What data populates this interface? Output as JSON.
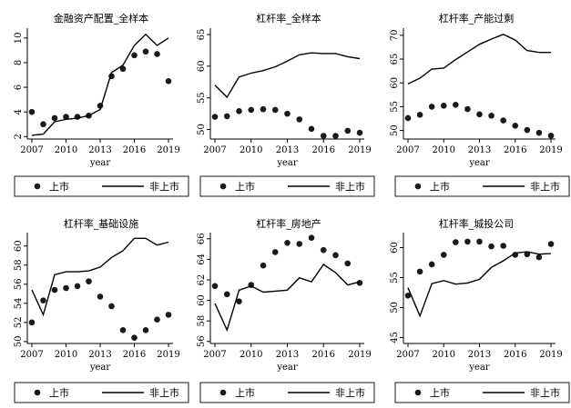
{
  "legend": {
    "listed": "上市",
    "unlisted": "非上市"
  },
  "chart_data": [
    {
      "type": "line",
      "title": "金融资产配置_全样本",
      "xlabel": "year",
      "ylabel": "",
      "x": [
        2007,
        2008,
        2009,
        2010,
        2011,
        2012,
        2013,
        2014,
        2015,
        2016,
        2017,
        2018,
        2019
      ],
      "xticks": [
        2007,
        2010,
        2013,
        2016,
        2019
      ],
      "ylim": [
        1.8,
        10.8
      ],
      "yticks": [
        2,
        4,
        6,
        8,
        10
      ],
      "series": [
        {
          "name": "上市",
          "style": "scatter",
          "values": [
            4.0,
            3.0,
            3.5,
            3.6,
            3.6,
            3.7,
            4.5,
            6.9,
            7.5,
            8.6,
            8.9,
            8.7,
            6.5
          ]
        },
        {
          "name": "非上市",
          "style": "line",
          "values": [
            2.1,
            2.2,
            3.2,
            3.4,
            3.5,
            3.7,
            4.2,
            7.2,
            7.8,
            9.4,
            10.3,
            9.4,
            10.0
          ]
        }
      ]
    },
    {
      "type": "line",
      "title": "杠杆率_全样本",
      "xlabel": "year",
      "ylabel": "",
      "x": [
        2007,
        2008,
        2009,
        2010,
        2011,
        2012,
        2013,
        2014,
        2015,
        2016,
        2017,
        2018,
        2019
      ],
      "xticks": [
        2007,
        2010,
        2013,
        2016,
        2019
      ],
      "ylim": [
        48.5,
        66
      ],
      "yticks": [
        50,
        55,
        60,
        65
      ],
      "series": [
        {
          "name": "上市",
          "style": "scatter",
          "values": [
            52.0,
            52.1,
            52.9,
            53.1,
            53.2,
            53.1,
            52.5,
            51.6,
            50.1,
            49.0,
            49.0,
            49.8,
            49.5
          ]
        },
        {
          "name": "非上市",
          "style": "line",
          "values": [
            57.0,
            55.1,
            58.3,
            58.9,
            59.3,
            59.9,
            60.8,
            61.8,
            62.1,
            62.0,
            62.0,
            61.5,
            61.2
          ]
        }
      ]
    },
    {
      "type": "line",
      "title": "杠杆率_产能过剩",
      "xlabel": "year",
      "ylabel": "",
      "x": [
        2007,
        2008,
        2009,
        2010,
        2011,
        2012,
        2013,
        2014,
        2015,
        2016,
        2017,
        2018,
        2019
      ],
      "xticks": [
        2007,
        2010,
        2013,
        2016,
        2019
      ],
      "ylim": [
        48.2,
        71.5
      ],
      "yticks": [
        50,
        55,
        60,
        65,
        70
      ],
      "series": [
        {
          "name": "上市",
          "style": "scatter",
          "values": [
            52.6,
            53.3,
            55.0,
            55.2,
            55.4,
            54.5,
            53.4,
            53.1,
            52.1,
            51.0,
            50.1,
            49.5,
            48.9
          ]
        },
        {
          "name": "非上市",
          "style": "line",
          "values": [
            59.8,
            61.0,
            62.9,
            63.1,
            64.9,
            66.5,
            68.1,
            69.2,
            70.2,
            69.0,
            66.8,
            66.4,
            66.4
          ]
        }
      ]
    },
    {
      "type": "line",
      "title": "杠杆率_基础设施",
      "xlabel": "year",
      "ylabel": "",
      "x": [
        2007,
        2008,
        2009,
        2010,
        2011,
        2012,
        2013,
        2014,
        2015,
        2016,
        2017,
        2018,
        2019
      ],
      "xticks": [
        2007,
        2010,
        2013,
        2016,
        2019
      ],
      "ylim": [
        49.8,
        61.4
      ],
      "yticks": [
        50,
        52,
        54,
        56,
        58,
        60
      ],
      "series": [
        {
          "name": "上市",
          "style": "scatter",
          "values": [
            52.0,
            54.3,
            55.4,
            55.6,
            55.8,
            56.3,
            54.7,
            53.7,
            51.2,
            50.4,
            51.2,
            52.3,
            52.8
          ]
        },
        {
          "name": "非上市",
          "style": "line",
          "values": [
            55.4,
            52.8,
            57.0,
            57.3,
            57.3,
            57.4,
            57.8,
            58.8,
            59.5,
            60.8,
            60.8,
            60.1,
            60.4
          ]
        }
      ]
    },
    {
      "type": "line",
      "title": "杠杆率_房地产",
      "xlabel": "year",
      "ylabel": "",
      "x": [
        2007,
        2008,
        2009,
        2010,
        2011,
        2012,
        2013,
        2014,
        2015,
        2016,
        2017,
        2018,
        2019
      ],
      "xticks": [
        2007,
        2010,
        2013,
        2016,
        2019
      ],
      "ylim": [
        55.8,
        66.6
      ],
      "yticks": [
        56,
        58,
        60,
        62,
        64,
        66
      ],
      "series": [
        {
          "name": "上市",
          "style": "scatter",
          "values": [
            61.4,
            60.6,
            59.9,
            61.5,
            63.4,
            64.7,
            65.6,
            65.5,
            66.1,
            64.9,
            64.4,
            63.6,
            61.7
          ]
        },
        {
          "name": "非上市",
          "style": "line",
          "values": [
            59.7,
            57.1,
            61.0,
            61.4,
            60.8,
            60.9,
            61.0,
            62.2,
            61.8,
            63.5,
            62.7,
            61.5,
            61.8
          ]
        }
      ]
    },
    {
      "type": "line",
      "title": "杠杆率_城投公司",
      "xlabel": "year",
      "ylabel": "",
      "x": [
        2007,
        2008,
        2009,
        2010,
        2011,
        2012,
        2013,
        2014,
        2015,
        2016,
        2017,
        2018,
        2019
      ],
      "xticks": [
        2007,
        2010,
        2013,
        2016,
        2019
      ],
      "ylim": [
        44,
        62.5
      ],
      "yticks": [
        45,
        50,
        55,
        60
      ],
      "series": [
        {
          "name": "上市",
          "style": "scatter",
          "values": [
            52.0,
            56.0,
            57.2,
            58.8,
            60.9,
            61.0,
            61.0,
            60.2,
            60.3,
            58.8,
            58.9,
            58.4,
            60.6
          ]
        },
        {
          "name": "非上市",
          "style": "line",
          "values": [
            53.3,
            48.6,
            54.0,
            54.5,
            53.9,
            54.1,
            54.7,
            56.7,
            57.8,
            59.1,
            59.3,
            58.9,
            59.0
          ]
        }
      ]
    }
  ]
}
